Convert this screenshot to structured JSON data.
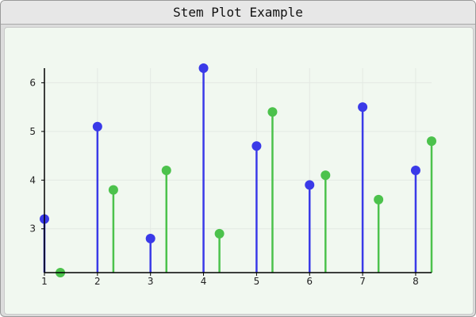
{
  "window": {
    "title": "Stem Plot Example"
  },
  "chart_data": {
    "type": "stem",
    "title": "",
    "xlabel": "",
    "ylabel": "",
    "xlim": [
      1,
      8.3
    ],
    "ylim": [
      2.1,
      6.3
    ],
    "x_ticks": [
      "1",
      "2",
      "3",
      "4",
      "5",
      "6",
      "7",
      "8"
    ],
    "y_ticks": [
      "3",
      "4",
      "5",
      "6"
    ],
    "grid": true,
    "series": [
      {
        "color": "#3a3ae8",
        "points": [
          [
            1,
            3.2
          ],
          [
            2,
            5.1
          ],
          [
            3,
            2.8
          ],
          [
            4,
            6.3
          ],
          [
            5,
            4.7
          ],
          [
            6,
            3.9
          ],
          [
            7,
            5.5
          ],
          [
            8,
            4.2
          ]
        ]
      },
      {
        "color": "#4cc24c",
        "points": [
          [
            1.3,
            2.1
          ],
          [
            2.3,
            3.8
          ],
          [
            3.3,
            4.2
          ],
          [
            4.3,
            2.9
          ],
          [
            5.3,
            5.4
          ],
          [
            6.3,
            4.1
          ],
          [
            7.3,
            3.6
          ],
          [
            8.3,
            4.8
          ]
        ]
      }
    ]
  }
}
